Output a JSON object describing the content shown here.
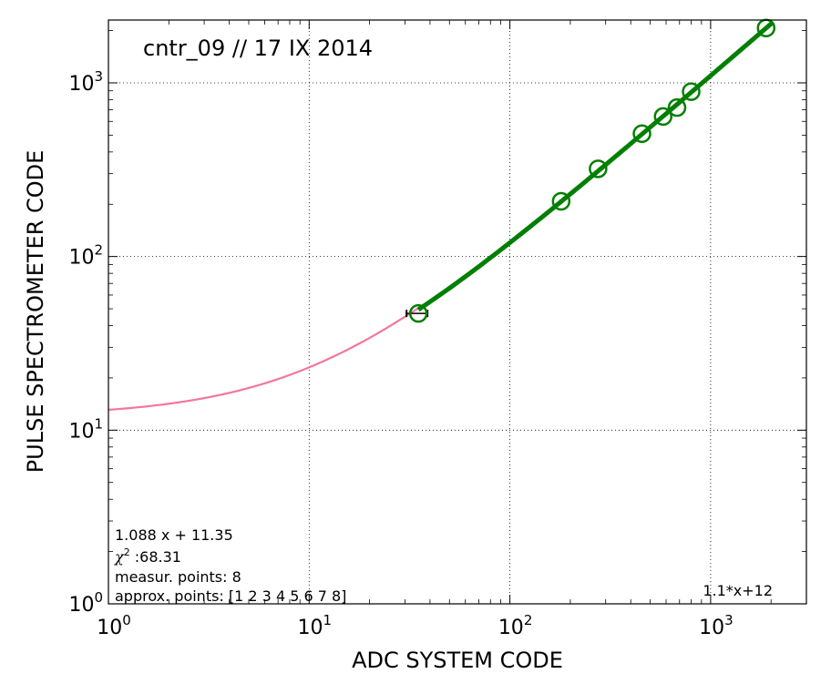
{
  "chart_data": {
    "type": "scatter",
    "title": "cntr_09 // 17 IX 2014",
    "xlabel": "ADC  SYSTEM  CODE",
    "ylabel": "PULSE  SPECTROMETER  CODE",
    "xscale": "log",
    "yscale": "log",
    "xlim": [
      1,
      3000
    ],
    "ylim": [
      1,
      2300
    ],
    "grid": true,
    "x_ticks": [
      {
        "base": "10",
        "exp": "0",
        "value": 1
      },
      {
        "base": "10",
        "exp": "1",
        "value": 10
      },
      {
        "base": "10",
        "exp": "2",
        "value": 100
      },
      {
        "base": "10",
        "exp": "3",
        "value": 1000
      }
    ],
    "y_ticks": [
      {
        "base": "10",
        "exp": "0",
        "value": 1
      },
      {
        "base": "10",
        "exp": "1",
        "value": 10
      },
      {
        "base": "10",
        "exp": "2",
        "value": 100
      },
      {
        "base": "10",
        "exp": "3",
        "value": 1000
      }
    ],
    "points": {
      "x": [
        35,
        180,
        275,
        455,
        580,
        680,
        800,
        1890
      ],
      "y": [
        47,
        208,
        320,
        510,
        640,
        720,
        890,
        2070
      ],
      "color": "#007f00"
    },
    "fit_line": {
      "slope": 1.088,
      "intercept": 11.35,
      "x_range": [
        35,
        2050
      ],
      "color": "#007f00"
    },
    "reference_curve": {
      "slope": 1.1,
      "intercept": 12,
      "x_range": [
        1,
        35
      ],
      "color": "#f4769b"
    },
    "annotations": {
      "fit_equation": "1.088 x + 11.35",
      "chi2_label": "χ",
      "chi2_power": "2",
      "chi2_value": " :68.31",
      "measured": "measur. points: 8",
      "approx": "approx. points: [1 2 3 4 5 6 7 8]",
      "reference_label": "1.1*x+12"
    }
  }
}
